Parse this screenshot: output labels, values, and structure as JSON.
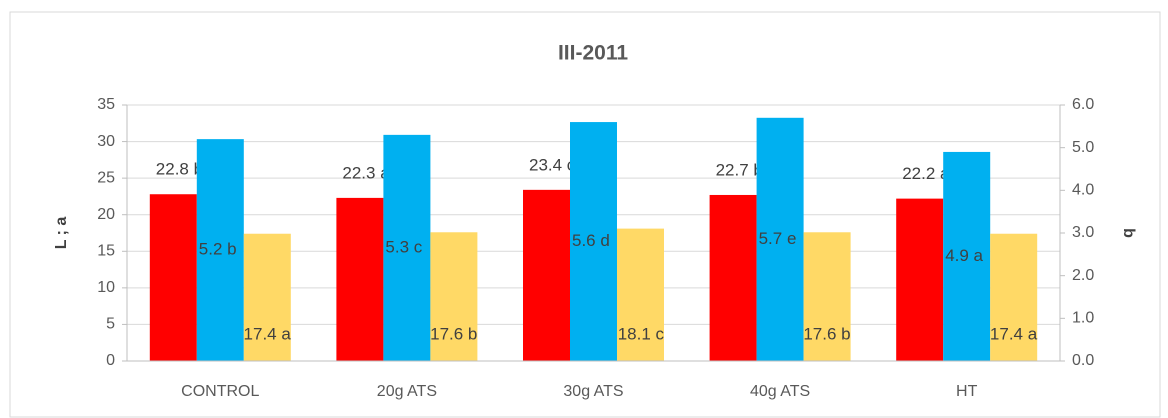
{
  "chart_data": {
    "type": "bar",
    "title": "III-2011",
    "categories": [
      "CONTROL",
      "20g ATS",
      "30g ATS",
      "40g ATS",
      "HT"
    ],
    "series": [
      {
        "color": "#ff0000",
        "values": [
          22.8,
          22.3,
          23.4,
          22.7,
          22.2
        ],
        "value_labels": [
          "22.8 b",
          "22.3 a",
          "23.4 c",
          "22.7 b",
          "22.2 a"
        ]
      },
      {
        "color": "#00b0f0",
        "axis": "y2",
        "values": [
          5.2,
          5.3,
          5.6,
          5.7,
          4.9
        ],
        "value_labels": [
          "5.2 b",
          "5.3 c",
          "5.6 d",
          "5.7 e",
          "4.9 a"
        ]
      },
      {
        "color": "#ffd966",
        "values": [
          17.4,
          17.6,
          18.1,
          17.6,
          17.4
        ],
        "value_labels": [
          "17.4 a",
          "17.6 b",
          "18.1 c",
          "17.6 b",
          "17.4 a"
        ]
      }
    ],
    "ylabel": "L ; a",
    "y2label": "b",
    "ylim": [
      0,
      35
    ],
    "yticks": [
      0,
      5,
      10,
      15,
      20,
      25,
      30,
      35
    ],
    "y2lim": [
      0,
      6
    ],
    "y2ticks": [
      {
        "value": 0,
        "label": "0.0"
      },
      {
        "value": 1,
        "label": "1.0"
      },
      {
        "value": 2,
        "label": "2.0"
      },
      {
        "value": 3,
        "label": "3.0"
      },
      {
        "value": 4,
        "label": "4.0"
      },
      {
        "value": 5,
        "label": "5.0"
      },
      {
        "value": 6,
        "label": "6.0"
      }
    ],
    "grid": true
  }
}
